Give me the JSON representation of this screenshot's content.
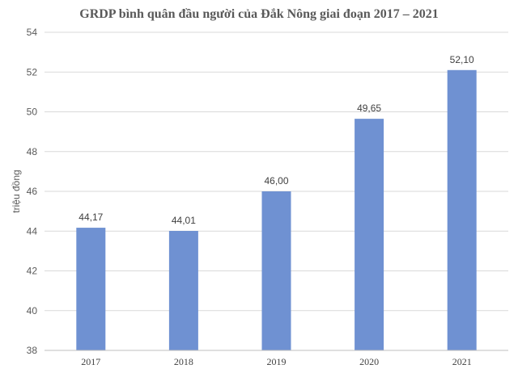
{
  "chart_data": {
    "type": "bar",
    "title": "GRDP bình quân đầu người của Đắk Nông giai đoạn 2017 – 2021",
    "xlabel": "",
    "ylabel": "triệu đồng",
    "categories": [
      "2017",
      "2018",
      "2019",
      "2020",
      "2021"
    ],
    "values": [
      44.17,
      44.01,
      46.0,
      49.65,
      52.1
    ],
    "data_labels": [
      "44,17",
      "44,01",
      "46,00",
      "49,65",
      "52,10"
    ],
    "ylim": [
      38,
      54
    ],
    "yticks": [
      38,
      40,
      42,
      44,
      46,
      48,
      50,
      52,
      54
    ],
    "grid": true,
    "legend": "none",
    "bar_color": "#6f91d2"
  }
}
